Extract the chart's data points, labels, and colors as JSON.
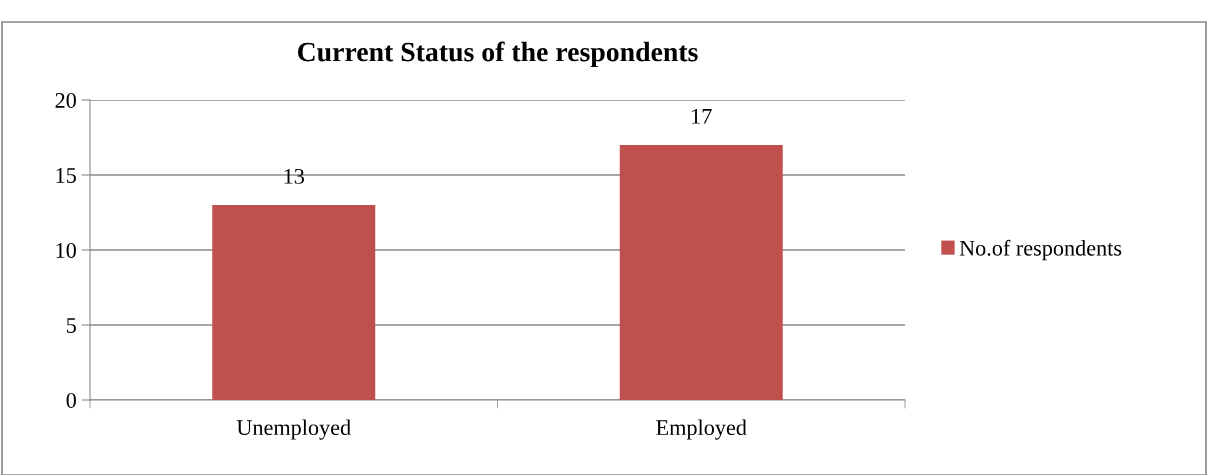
{
  "chart_data": {
    "type": "bar",
    "title": "Current Status of the respondents",
    "categories": [
      "Unemployed",
      "Employed"
    ],
    "series": [
      {
        "name": "No.of respondents",
        "color": "#c0504d",
        "values": [
          13,
          17
        ]
      }
    ],
    "ylim": [
      0,
      20
    ],
    "yticks": [
      0,
      5,
      10,
      15,
      20
    ],
    "grid": "y",
    "legend": "right",
    "data_labels": true
  }
}
